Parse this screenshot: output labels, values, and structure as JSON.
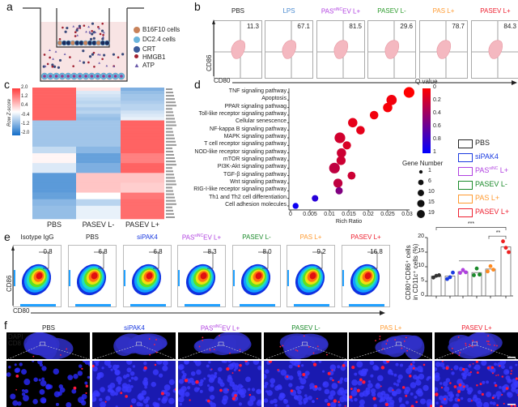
{
  "panel_labels": {
    "a": "a",
    "b": "b",
    "c": "c",
    "d": "d",
    "e": "e",
    "f": "f"
  },
  "panel_a": {
    "legend": [
      {
        "label": "B16F10 cells",
        "icon": "tumor-cell-icon",
        "color": "#c8825a"
      },
      {
        "label": "DC2.4 cells",
        "icon": "dendritic-cell-icon",
        "color": "#6ab4dc"
      },
      {
        "label": "CRT",
        "icon": "crt-icon",
        "color": "#3a5a9a"
      },
      {
        "label": "HMGB1",
        "icon": "hmgb1-icon",
        "color": "#a02030"
      },
      {
        "label": "ATP",
        "icon": "atp-icon",
        "color": "#6a5aaa"
      }
    ]
  },
  "panel_b": {
    "y_axis": "CD86",
    "x_axis": "CD80",
    "plots": [
      {
        "title": "PBS",
        "value": "11.3",
        "color": "#222222"
      },
      {
        "title": "LPS",
        "value": "67.1",
        "color": "#4a8ad0"
      },
      {
        "title": "PAS",
        "title_sup": "siNC",
        "title_rest": "EV L+",
        "value": "81.5",
        "color": "#b040e0"
      },
      {
        "title": "PASEV L-",
        "value": "29.6",
        "color": "#2a9a2a"
      },
      {
        "title": "PAS L+",
        "value": "78.7",
        "color": "#ff9a30"
      },
      {
        "title": "PASEV L+",
        "value": "84.3",
        "color": "#ee2030"
      }
    ]
  },
  "panel_c": {
    "colorbar_title": "Row Z-score",
    "colorbar_ticks": [
      "2.0",
      "1.2",
      "0.4",
      "-0.4",
      "-1.2",
      "-2.0"
    ],
    "columns": [
      "PBS",
      "PASEV L-",
      "PASEV L+"
    ],
    "z_rows": [
      [
        1.6,
        0.3,
        -1.1
      ],
      [
        1.6,
        -0.3,
        -0.9
      ],
      [
        1.6,
        -0.4,
        -0.8
      ],
      [
        1.6,
        -0.5,
        -0.8
      ],
      [
        1.6,
        -0.6,
        -0.7
      ],
      [
        1.6,
        -0.5,
        -0.6
      ],
      [
        1.6,
        -0.7,
        -0.6
      ],
      [
        1.6,
        -0.6,
        -0.4
      ],
      [
        1.6,
        -0.8,
        -0.3
      ],
      [
        1.6,
        -0.9,
        -0.2
      ],
      [
        -0.8,
        -0.8,
        1.6
      ],
      [
        -0.8,
        -0.8,
        1.6
      ],
      [
        -0.8,
        -0.8,
        1.6
      ],
      [
        -0.8,
        -0.8,
        1.6
      ],
      [
        -0.8,
        -0.8,
        1.6
      ],
      [
        -0.8,
        -0.8,
        1.6
      ],
      [
        -0.8,
        -0.8,
        1.6
      ],
      [
        -0.8,
        -0.8,
        1.6
      ],
      [
        -0.5,
        -1.0,
        1.6
      ],
      [
        -0.5,
        -1.0,
        1.6
      ],
      [
        0.1,
        -1.3,
        1.3
      ],
      [
        0.1,
        -1.3,
        1.3
      ],
      [
        0.1,
        -1.3,
        1.3
      ],
      [
        -0.3,
        -1.1,
        1.6
      ],
      [
        -0.3,
        -1.1,
        1.6
      ],
      [
        -0.3,
        -1.1,
        1.6
      ],
      [
        -1.4,
        0.6,
        0.6
      ],
      [
        -1.4,
        0.6,
        0.6
      ],
      [
        -1.4,
        0.6,
        0.6
      ],
      [
        -1.4,
        0.6,
        0.5
      ],
      [
        -1.4,
        0.6,
        0.5
      ],
      [
        -1.4,
        0.6,
        0.5
      ],
      [
        -1.3,
        0.0,
        1.4
      ],
      [
        -1.3,
        0.0,
        1.4
      ],
      [
        -1.0,
        -0.6,
        1.5
      ],
      [
        -1.0,
        -0.6,
        1.5
      ],
      [
        -0.9,
        -0.2,
        1.5
      ],
      [
        -0.9,
        -0.2,
        1.5
      ],
      [
        -0.9,
        -0.2,
        1.5
      ],
      [
        -0.9,
        -0.2,
        1.5
      ]
    ]
  },
  "chart_data": [
    {
      "type": "scatter",
      "panel": "d",
      "xlabel": "Rich Ratio",
      "xlim": [
        0,
        0.03
      ],
      "x_ticks": [
        "0",
        "0.005",
        "0.01",
        "0.015",
        "0.02",
        "0.025",
        "0.03"
      ],
      "color_legend_title": "Q value",
      "color_ticks": [
        "0",
        "0.2",
        "0.4",
        "0.6",
        "0.8",
        "1"
      ],
      "size_legend_title": "Gene Number",
      "size_ticks": [
        "1",
        "6",
        "10",
        "15",
        "19"
      ],
      "points": [
        {
          "pathway": "TNF signaling pathway",
          "rich_ratio": 0.0305,
          "q": 0.0,
          "genes": 19
        },
        {
          "pathway": "Apoptosis",
          "rich_ratio": 0.026,
          "q": 0.05,
          "genes": 17
        },
        {
          "pathway": "PPAR signaling pathwag",
          "rich_ratio": 0.025,
          "q": 0.03,
          "genes": 13
        },
        {
          "pathway": "Toll-like receptor signaling pathway",
          "rich_ratio": 0.0215,
          "q": 0.05,
          "genes": 10
        },
        {
          "pathway": "Cellular senescence",
          "rich_ratio": 0.016,
          "q": 0.1,
          "genes": 13
        },
        {
          "pathway": "NF-kappa B signaling pathway",
          "rich_ratio": 0.018,
          "q": 0.1,
          "genes": 10
        },
        {
          "pathway": "MAPK signaling pathway",
          "rich_ratio": 0.0127,
          "q": 0.18,
          "genes": 19
        },
        {
          "pathway": "T cell receptor signaling pathway",
          "rich_ratio": 0.0145,
          "q": 0.15,
          "genes": 9
        },
        {
          "pathway": "NOD-like receptor signaling pathway",
          "rich_ratio": 0.0131,
          "q": 0.2,
          "genes": 13
        },
        {
          "pathway": "mTOR signaling pathway",
          "rich_ratio": 0.013,
          "q": 0.2,
          "genes": 12
        },
        {
          "pathway": "PI3K-Akt signaling pathway",
          "rich_ratio": 0.0113,
          "q": 0.25,
          "genes": 19
        },
        {
          "pathway": "TGF-β signaling pathway",
          "rich_ratio": 0.0157,
          "q": 0.2,
          "genes": 8
        },
        {
          "pathway": "Wnt signaling pathway",
          "rich_ratio": 0.0122,
          "q": 0.25,
          "genes": 12
        },
        {
          "pathway": "RIG-I-like receptor signaling pathway",
          "rich_ratio": 0.0125,
          "q": 0.5,
          "genes": 6
        },
        {
          "pathway": "Th1 and Th2 cell differentiation",
          "rich_ratio": 0.0063,
          "q": 0.85,
          "genes": 4
        },
        {
          "pathway": "Cell adhesion molecules",
          "rich_ratio": 0.0013,
          "q": 0.95,
          "genes": 3
        }
      ]
    },
    {
      "type": "bar",
      "panel": "e",
      "ylabel_line1": "CD80⁺CD86⁺ cells",
      "ylabel_line2": "in CD11c⁺ cells (%)",
      "ylim": [
        0,
        20
      ],
      "y_ticks": [
        "0",
        "5",
        "10",
        "15",
        "20"
      ],
      "categories": [
        "PBS",
        "siPAK4",
        "PASsiNC L+",
        "PASEV L-",
        "PAS L+",
        "PASEV L+"
      ],
      "values": [
        6.8,
        6.8,
        8.3,
        8.0,
        9.2,
        16.8
      ],
      "points": [
        [
          6.3,
          6.9,
          7.1
        ],
        [
          5.8,
          6.4,
          8.0
        ],
        [
          7.9,
          8.9,
          8.1
        ],
        [
          7.1,
          9.4,
          7.3
        ],
        [
          8.4,
          10.2,
          9.0
        ],
        [
          18.7,
          16.5,
          15.0
        ]
      ],
      "point_colors": [
        "#333333",
        "#1a3ae0",
        "#b040e0",
        "#1a8a2a",
        "#ff8a20",
        "#ee2020"
      ],
      "significance": [
        {
          "label": "***",
          "from": 0,
          "to": 5
        },
        {
          "label": "**",
          "from": 4,
          "to": 5
        }
      ]
    }
  ],
  "group_legend": [
    {
      "label": "PBS",
      "color": "#222222"
    },
    {
      "label": "siPAK4",
      "color": "#1a3ae0"
    },
    {
      "label": "PAS",
      "sup": "siNC",
      "rest": " L+",
      "color": "#b040e0"
    },
    {
      "label": "PASEV L-",
      "color": "#1a8a2a"
    },
    {
      "label": "PAS L+",
      "color": "#ff9a30"
    },
    {
      "label": "PASEV L+",
      "color": "#ee2030"
    }
  ],
  "panel_e": {
    "y_axis": "CD86",
    "x_axis": "CD80",
    "plots": [
      {
        "title": "Isotype IgG",
        "value": "0.8",
        "color": "#222222"
      },
      {
        "title": "PBS",
        "value": "6.8",
        "color": "#222222"
      },
      {
        "title": "siPAK4",
        "value": "6.8",
        "color": "#1a3ae0"
      },
      {
        "title": "PAS",
        "title_sup": "siNC",
        "title_rest": "EV L+",
        "value": "8.3",
        "color": "#b040e0"
      },
      {
        "title": "PASEV L-",
        "value": "8.0",
        "color": "#1a8a2a"
      },
      {
        "title": "PAS L+",
        "value": "9.2",
        "color": "#ff9a30"
      },
      {
        "title": "PASEV L+",
        "value": "16.8",
        "color": "#ee2030"
      }
    ]
  },
  "panel_f": {
    "channels": [
      {
        "label": "DAPI",
        "color": "#2030ff"
      },
      {
        "label": "CD8",
        "color": "#ff1030"
      }
    ],
    "columns": [
      {
        "title": "PBS",
        "color": "#222222",
        "cd8": 0.1
      },
      {
        "title": "siPAK4",
        "color": "#1a3ae0",
        "cd8": 0.15
      },
      {
        "title": "PAS",
        "title_sup": "siNC",
        "title_rest": "EV L+",
        "color": "#b040e0",
        "cd8": 0.25
      },
      {
        "title": "PASEV L-",
        "color": "#1a8a2a",
        "cd8": 0.3
      },
      {
        "title": "PAS L+",
        "color": "#ff9a30",
        "cd8": 0.35
      },
      {
        "title": "PASEV L+",
        "color": "#ee2030",
        "cd8": 0.7
      }
    ]
  }
}
